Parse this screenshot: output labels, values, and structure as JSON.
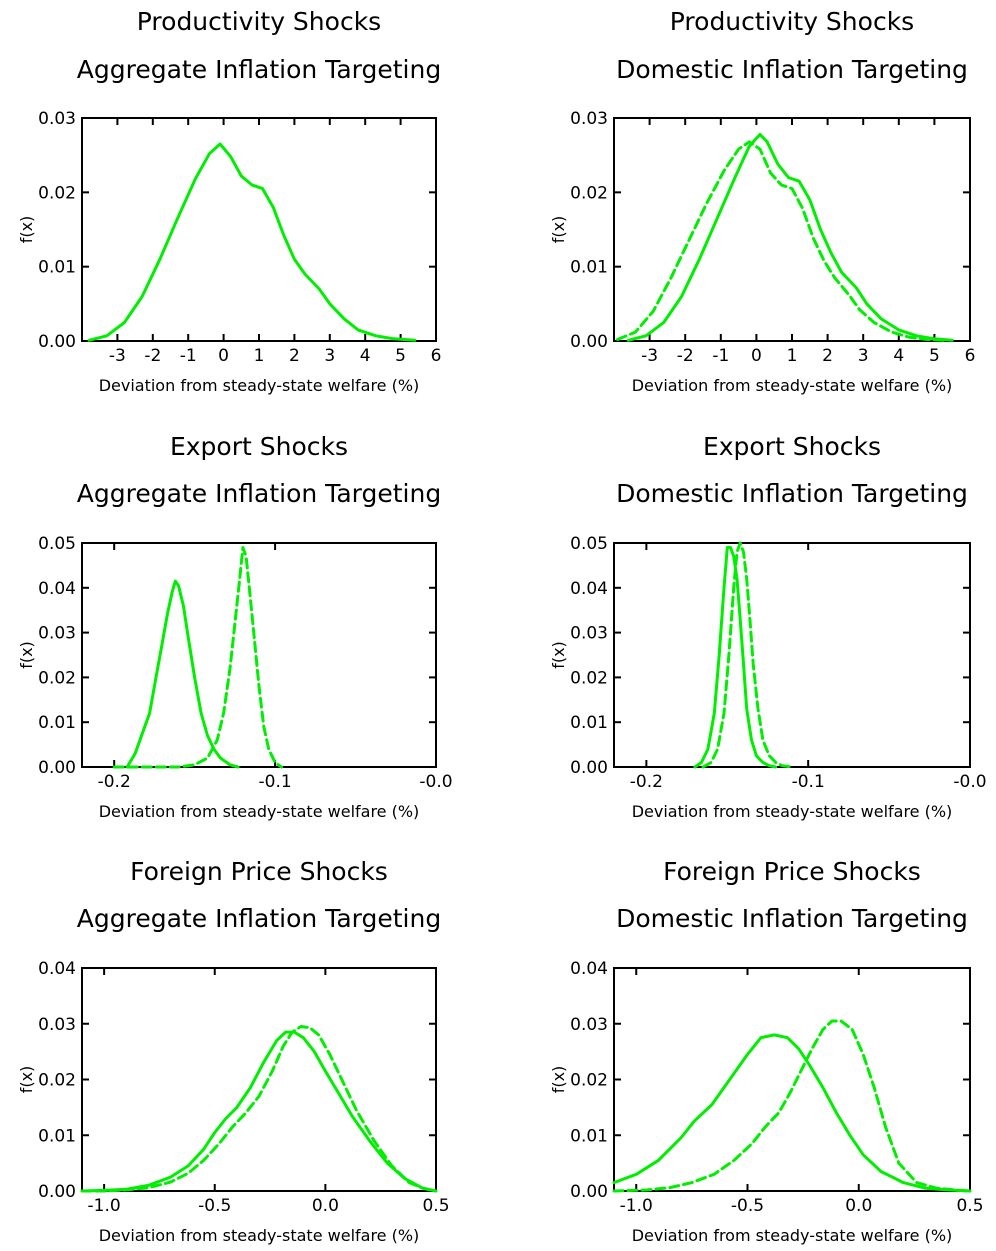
{
  "figure": {
    "colors": {
      "series": "#00ee00",
      "axes": "#000000",
      "background": "#ffffff"
    },
    "panels": [
      {
        "title_lines": [
          "Productivity Shocks",
          "Aggregate Inflation Targeting"
        ],
        "xlabel": "Deviation from steady-state welfare (%)",
        "ylabel": "f(x)",
        "xticks": [
          {
            "v": -3,
            "t": "-3"
          },
          {
            "v": -2,
            "t": "-2"
          },
          {
            "v": -1,
            "t": "-1"
          },
          {
            "v": 0,
            "t": "0"
          },
          {
            "v": 1,
            "t": "1"
          },
          {
            "v": 2,
            "t": "2"
          },
          {
            "v": 3,
            "t": "3"
          },
          {
            "v": 4,
            "t": "4"
          },
          {
            "v": 5,
            "t": "5"
          },
          {
            "v": 6,
            "t": "6"
          }
        ],
        "yticks": [
          {
            "v": 0,
            "t": "0.00"
          },
          {
            "v": 0.01,
            "t": "0.01"
          },
          {
            "v": 0.02,
            "t": "0.02"
          },
          {
            "v": 0.03,
            "t": "0.03"
          }
        ]
      },
      {
        "title_lines": [
          "Productivity Shocks",
          "Domestic Inflation Targeting"
        ],
        "xlabel": "Deviation from steady-state welfare (%)",
        "ylabel": "f(x)",
        "xticks": [
          {
            "v": -3,
            "t": "-3"
          },
          {
            "v": -2,
            "t": "-2"
          },
          {
            "v": -1,
            "t": "-1"
          },
          {
            "v": 0,
            "t": "0"
          },
          {
            "v": 1,
            "t": "1"
          },
          {
            "v": 2,
            "t": "2"
          },
          {
            "v": 3,
            "t": "3"
          },
          {
            "v": 4,
            "t": "4"
          },
          {
            "v": 5,
            "t": "5"
          },
          {
            "v": 6,
            "t": "6"
          }
        ],
        "yticks": [
          {
            "v": 0,
            "t": "0.00"
          },
          {
            "v": 0.01,
            "t": "0.01"
          },
          {
            "v": 0.02,
            "t": "0.02"
          },
          {
            "v": 0.03,
            "t": "0.03"
          }
        ]
      },
      {
        "title_lines": [
          "Export Shocks",
          "Aggregate Inflation Targeting"
        ],
        "xlabel": "Deviation from steady-state welfare (%)",
        "ylabel": "f(x)",
        "xticks": [
          {
            "v": -0.2,
            "t": "-0.2"
          },
          {
            "v": -0.1,
            "t": "-0.1"
          },
          {
            "v": 0,
            "t": "-0.0"
          }
        ],
        "yticks": [
          {
            "v": 0,
            "t": "0.00"
          },
          {
            "v": 0.01,
            "t": "0.01"
          },
          {
            "v": 0.02,
            "t": "0.02"
          },
          {
            "v": 0.03,
            "t": "0.03"
          },
          {
            "v": 0.04,
            "t": "0.04"
          },
          {
            "v": 0.05,
            "t": "0.05"
          }
        ]
      },
      {
        "title_lines": [
          "Export Shocks",
          "Domestic Inflation Targeting"
        ],
        "xlabel": "Deviation from steady-state welfare (%)",
        "ylabel": "f(x)",
        "xticks": [
          {
            "v": -0.2,
            "t": "-0.2"
          },
          {
            "v": -0.1,
            "t": "-0.1"
          },
          {
            "v": 0,
            "t": "-0.0"
          }
        ],
        "yticks": [
          {
            "v": 0,
            "t": "0.00"
          },
          {
            "v": 0.01,
            "t": "0.01"
          },
          {
            "v": 0.02,
            "t": "0.02"
          },
          {
            "v": 0.03,
            "t": "0.03"
          },
          {
            "v": 0.04,
            "t": "0.04"
          },
          {
            "v": 0.05,
            "t": "0.05"
          }
        ]
      },
      {
        "title_lines": [
          "Foreign Price Shocks",
          "Aggregate Inflation Targeting"
        ],
        "xlabel": "Deviation from steady-state welfare (%)",
        "ylabel": "f(x)",
        "xticks": [
          {
            "v": -1,
            "t": "-1.0"
          },
          {
            "v": -0.5,
            "t": "-0.5"
          },
          {
            "v": 0,
            "t": "0.0"
          },
          {
            "v": 0.5,
            "t": "0.5"
          }
        ],
        "yticks": [
          {
            "v": 0,
            "t": "0.00"
          },
          {
            "v": 0.01,
            "t": "0.01"
          },
          {
            "v": 0.02,
            "t": "0.02"
          },
          {
            "v": 0.03,
            "t": "0.03"
          },
          {
            "v": 0.04,
            "t": "0.04"
          }
        ]
      },
      {
        "title_lines": [
          "Foreign Price Shocks",
          "Domestic Inflation Targeting"
        ],
        "xlabel": "Deviation from steady-state welfare (%)",
        "ylabel": "f(x)",
        "xticks": [
          {
            "v": -1,
            "t": "-1.0"
          },
          {
            "v": -0.5,
            "t": "-0.5"
          },
          {
            "v": 0,
            "t": "0.0"
          },
          {
            "v": 0.5,
            "t": "0.5"
          }
        ],
        "yticks": [
          {
            "v": 0,
            "t": "0.00"
          },
          {
            "v": 0.01,
            "t": "0.01"
          },
          {
            "v": 0.02,
            "t": "0.02"
          },
          {
            "v": 0.03,
            "t": "0.03"
          },
          {
            "v": 0.04,
            "t": "0.04"
          }
        ]
      }
    ]
  },
  "chart_data": [
    {
      "type": "line",
      "title": "Productivity Shocks Aggregate Inflation Targeting",
      "xlabel": "Deviation from steady-state welfare (%)",
      "ylabel": "f(x)",
      "xlim": [
        -4,
        6
      ],
      "ylim": [
        0,
        0.03
      ],
      "series": [
        {
          "style": "solid",
          "color": "#00ee00",
          "x": [
            -3.8,
            -3.3,
            -2.8,
            -2.3,
            -1.8,
            -1.3,
            -0.8,
            -0.4,
            -0.1,
            0.2,
            0.5,
            0.8,
            1.1,
            1.4,
            1.7,
            2.0,
            2.3,
            2.7,
            3.0,
            3.4,
            3.8,
            4.3,
            4.8,
            5.4
          ],
          "y": [
            0.0001,
            0.0007,
            0.0025,
            0.006,
            0.011,
            0.0165,
            0.0218,
            0.0252,
            0.0265,
            0.0248,
            0.0222,
            0.021,
            0.0205,
            0.018,
            0.0142,
            0.011,
            0.009,
            0.007,
            0.005,
            0.003,
            0.0015,
            0.0007,
            0.0003,
            0.0001
          ]
        }
      ]
    },
    {
      "type": "line",
      "title": "Productivity Shocks Domestic Inflation Targeting",
      "xlabel": "Deviation from steady-state welfare (%)",
      "ylabel": "f(x)",
      "xlim": [
        -4,
        6
      ],
      "ylim": [
        0,
        0.03
      ],
      "series": [
        {
          "style": "solid",
          "color": "#00ee00",
          "x": [
            -3.6,
            -3.1,
            -2.6,
            -2.1,
            -1.6,
            -1.1,
            -0.6,
            -0.2,
            0.1,
            0.3,
            0.6,
            0.9,
            1.2,
            1.5,
            1.8,
            2.1,
            2.4,
            2.8,
            3.1,
            3.5,
            4.0,
            4.5,
            5.0,
            5.5
          ],
          "y": [
            0.0001,
            0.0007,
            0.0025,
            0.006,
            0.011,
            0.0165,
            0.022,
            0.0262,
            0.0278,
            0.0268,
            0.0238,
            0.022,
            0.0215,
            0.019,
            0.015,
            0.0118,
            0.0092,
            0.0072,
            0.005,
            0.003,
            0.0015,
            0.0007,
            0.0003,
            0.0001
          ]
        },
        {
          "style": "dashed",
          "color": "#00ee00",
          "x": [
            -3.9,
            -3.4,
            -2.9,
            -2.4,
            -1.9,
            -1.4,
            -0.9,
            -0.5,
            -0.2,
            0.1,
            0.4,
            0.7,
            1.0,
            1.3,
            1.6,
            1.9,
            2.2,
            2.6,
            2.9,
            3.3,
            3.8,
            4.3,
            4.8,
            5.3
          ],
          "y": [
            0.0002,
            0.0012,
            0.004,
            0.0085,
            0.0135,
            0.0185,
            0.023,
            0.0258,
            0.0268,
            0.0258,
            0.0226,
            0.021,
            0.0205,
            0.0178,
            0.0138,
            0.0108,
            0.0085,
            0.0062,
            0.0042,
            0.0025,
            0.0012,
            0.0005,
            0.0002,
            0.0001
          ]
        }
      ]
    },
    {
      "type": "line",
      "title": "Export Shocks Aggregate Inflation Targeting",
      "xlabel": "Deviation from steady-state welfare (%)",
      "ylabel": "f(x)",
      "xlim": [
        -0.22,
        0
      ],
      "ylim": [
        0,
        0.05
      ],
      "series": [
        {
          "style": "solid",
          "color": "#00ee00",
          "x": [
            -0.192,
            -0.187,
            -0.182,
            -0.178,
            -0.174,
            -0.17,
            -0.167,
            -0.164,
            -0.162,
            -0.16,
            -0.157,
            -0.154,
            -0.15,
            -0.146,
            -0.142,
            -0.138,
            -0.134,
            -0.128,
            -0.123
          ],
          "y": [
            0.0,
            0.003,
            0.008,
            0.012,
            0.02,
            0.028,
            0.034,
            0.039,
            0.0415,
            0.0405,
            0.036,
            0.029,
            0.02,
            0.012,
            0.007,
            0.004,
            0.002,
            0.0005,
            0.0
          ]
        },
        {
          "style": "dashed",
          "color": "#00ee00",
          "x": [
            -0.2,
            -0.18,
            -0.16,
            -0.15,
            -0.142,
            -0.136,
            -0.132,
            -0.128,
            -0.125,
            -0.122,
            -0.12,
            -0.118,
            -0.116,
            -0.113,
            -0.11,
            -0.107,
            -0.104,
            -0.1,
            -0.096
          ],
          "y": [
            0.0,
            0.0,
            0.0,
            0.0005,
            0.002,
            0.006,
            0.012,
            0.022,
            0.032,
            0.042,
            0.049,
            0.047,
            0.04,
            0.029,
            0.018,
            0.009,
            0.004,
            0.001,
            0.0
          ]
        }
      ]
    },
    {
      "type": "line",
      "title": "Export Shocks Domestic Inflation Targeting",
      "xlabel": "Deviation from steady-state welfare (%)",
      "ylabel": "f(x)",
      "xlim": [
        -0.22,
        0
      ],
      "ylim": [
        0,
        0.05
      ],
      "series": [
        {
          "style": "solid",
          "color": "#00ee00",
          "x": [
            -0.17,
            -0.166,
            -0.162,
            -0.158,
            -0.155,
            -0.152,
            -0.15,
            -0.148,
            -0.146,
            -0.144,
            -0.142,
            -0.14,
            -0.138,
            -0.135,
            -0.132,
            -0.128,
            -0.124,
            -0.12
          ],
          "y": [
            0.0,
            0.001,
            0.004,
            0.012,
            0.025,
            0.04,
            0.049,
            0.049,
            0.047,
            0.042,
            0.033,
            0.023,
            0.013,
            0.006,
            0.0025,
            0.001,
            0.0003,
            0.0
          ]
        },
        {
          "style": "dashed",
          "color": "#00ee00",
          "x": [
            -0.165,
            -0.16,
            -0.156,
            -0.152,
            -0.149,
            -0.146,
            -0.144,
            -0.142,
            -0.14,
            -0.138,
            -0.136,
            -0.134,
            -0.131,
            -0.128,
            -0.124,
            -0.12,
            -0.116,
            -0.11
          ],
          "y": [
            0.0,
            0.001,
            0.004,
            0.012,
            0.025,
            0.04,
            0.048,
            0.05,
            0.048,
            0.042,
            0.033,
            0.023,
            0.013,
            0.006,
            0.0025,
            0.001,
            0.0003,
            0.0
          ]
        }
      ]
    },
    {
      "type": "line",
      "title": "Foreign Price Shocks Aggregate Inflation Targeting",
      "xlabel": "Deviation from steady-state welfare (%)",
      "ylabel": "f(x)",
      "xlim": [
        -1.1,
        0.5
      ],
      "ylim": [
        0,
        0.04
      ],
      "series": [
        {
          "style": "solid",
          "color": "#00ee00",
          "x": [
            -1.1,
            -1.0,
            -0.9,
            -0.8,
            -0.7,
            -0.62,
            -0.55,
            -0.5,
            -0.45,
            -0.4,
            -0.34,
            -0.28,
            -0.22,
            -0.18,
            -0.14,
            -0.1,
            -0.05,
            0.0,
            0.06,
            0.12,
            0.2,
            0.28,
            0.36,
            0.44,
            0.5
          ],
          "y": [
            0.0,
            0.0001,
            0.0003,
            0.001,
            0.0025,
            0.0045,
            0.0075,
            0.0105,
            0.013,
            0.015,
            0.0185,
            0.023,
            0.027,
            0.0285,
            0.0285,
            0.0275,
            0.025,
            0.0215,
            0.0175,
            0.0135,
            0.009,
            0.005,
            0.0022,
            0.0005,
            0.0
          ]
        },
        {
          "style": "dashed",
          "color": "#00ee00",
          "x": [
            -1.1,
            -1.0,
            -0.9,
            -0.8,
            -0.7,
            -0.62,
            -0.55,
            -0.48,
            -0.42,
            -0.36,
            -0.3,
            -0.24,
            -0.19,
            -0.15,
            -0.11,
            -0.07,
            -0.03,
            0.02,
            0.08,
            0.14,
            0.22,
            0.3,
            0.38,
            0.44,
            0.5
          ],
          "y": [
            0.0,
            0.0,
            0.0002,
            0.0006,
            0.0016,
            0.0032,
            0.0055,
            0.0085,
            0.0115,
            0.014,
            0.017,
            0.0215,
            0.026,
            0.0285,
            0.0295,
            0.0293,
            0.028,
            0.0245,
            0.0195,
            0.0145,
            0.009,
            0.0045,
            0.0015,
            0.0005,
            0.0
          ]
        }
      ]
    },
    {
      "type": "line",
      "title": "Foreign Price Shocks Domestic Inflation Targeting",
      "xlabel": "Deviation from steady-state welfare (%)",
      "ylabel": "f(x)",
      "xlim": [
        -1.1,
        0.5
      ],
      "ylim": [
        0,
        0.04
      ],
      "series": [
        {
          "style": "solid",
          "color": "#00ee00",
          "x": [
            -1.1,
            -1.0,
            -0.9,
            -0.8,
            -0.74,
            -0.66,
            -0.58,
            -0.5,
            -0.44,
            -0.38,
            -0.32,
            -0.27,
            -0.22,
            -0.16,
            -0.1,
            -0.04,
            0.02,
            0.1,
            0.2,
            0.3,
            0.4,
            0.5
          ],
          "y": [
            0.0015,
            0.003,
            0.0055,
            0.0095,
            0.0125,
            0.0155,
            0.02,
            0.0245,
            0.0275,
            0.028,
            0.0275,
            0.0255,
            0.0225,
            0.0185,
            0.014,
            0.01,
            0.0065,
            0.0035,
            0.0015,
            0.0005,
            0.0002,
            0.0
          ]
        },
        {
          "style": "dashed",
          "color": "#00ee00",
          "x": [
            -1.1,
            -0.95,
            -0.85,
            -0.75,
            -0.65,
            -0.56,
            -0.48,
            -0.42,
            -0.36,
            -0.31,
            -0.26,
            -0.21,
            -0.16,
            -0.12,
            -0.08,
            -0.03,
            0.02,
            0.07,
            0.12,
            0.18,
            0.26,
            0.35,
            0.45,
            0.5
          ],
          "y": [
            0.0,
            0.0002,
            0.0006,
            0.0015,
            0.003,
            0.0055,
            0.0085,
            0.0115,
            0.014,
            0.0175,
            0.0215,
            0.0255,
            0.029,
            0.0305,
            0.0305,
            0.029,
            0.0245,
            0.0185,
            0.0115,
            0.005,
            0.0015,
            0.0005,
            0.0001,
            0.0
          ]
        }
      ]
    }
  ]
}
